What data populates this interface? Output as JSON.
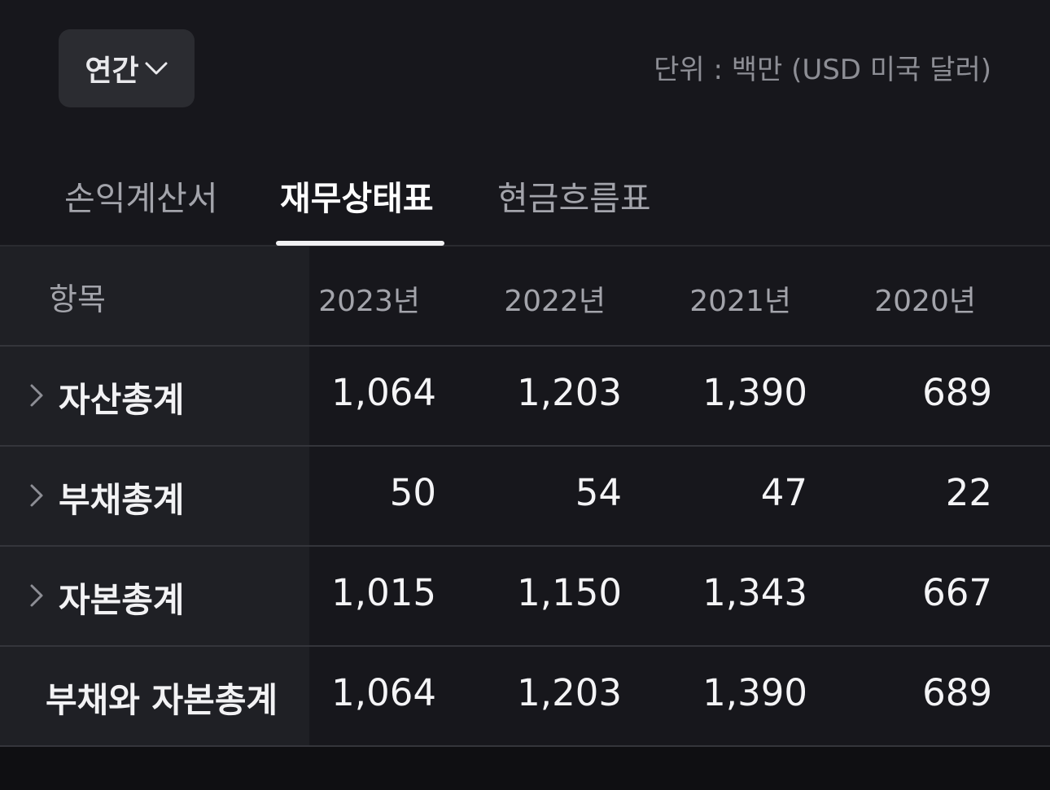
{
  "period_select": {
    "label": "연간",
    "icon": "chevron-down-icon"
  },
  "unit_text": "단위 : 백만 (USD 미국 달러)",
  "tabs": [
    {
      "label": "손익계산서",
      "active": false
    },
    {
      "label": "재무상태표",
      "active": true
    },
    {
      "label": "현금흐름표",
      "active": false
    }
  ],
  "table": {
    "header": {
      "item": "항목",
      "years": [
        "2023년",
        "2022년",
        "2021년",
        "2020년"
      ]
    },
    "rows": [
      {
        "label": "자산총계",
        "expandable": true,
        "values": [
          "1,064",
          "1,203",
          "1,390",
          "689"
        ]
      },
      {
        "label": "부채총계",
        "expandable": true,
        "values": [
          "50",
          "54",
          "47",
          "22"
        ]
      },
      {
        "label": "자본총계",
        "expandable": true,
        "values": [
          "1,015",
          "1,150",
          "1,343",
          "667"
        ]
      },
      {
        "label": "부채와 자본총계",
        "expandable": false,
        "values": [
          "1,064",
          "1,203",
          "1,390",
          "689"
        ]
      }
    ]
  },
  "colors": {
    "background": "#0f0f12",
    "panel": "#17171c",
    "label_column": "#1f2025",
    "button": "#2b2c31",
    "muted_text": "#a3a4ab"
  }
}
